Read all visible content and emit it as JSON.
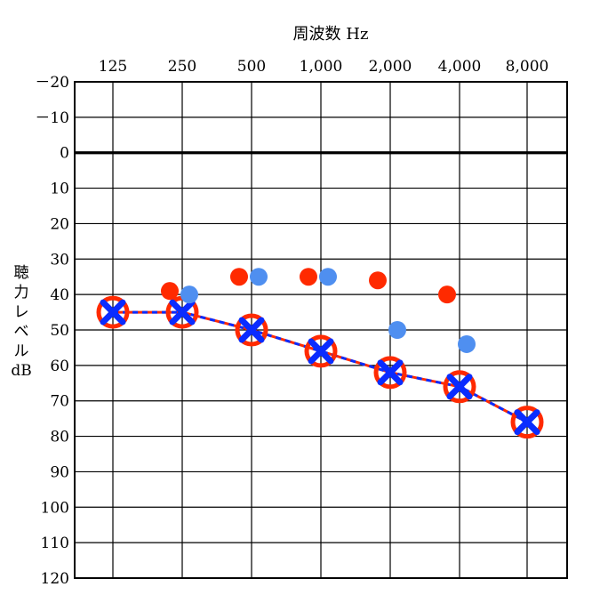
{
  "chart_data": {
    "type": "scatter",
    "title": "",
    "xlabel": "周波数 Hz",
    "ylabel_lines": [
      "聴",
      "力",
      "レ",
      "ベ",
      "ル",
      "dB"
    ],
    "x_categories": [
      "125",
      "250",
      "500",
      "1,000",
      "2,000",
      "4,000",
      "8,000"
    ],
    "y_ticks": [
      "－20",
      "－10",
      "0",
      "10",
      "20",
      "30",
      "40",
      "50",
      "60",
      "70",
      "80",
      "90",
      "100",
      "110",
      "120"
    ],
    "y_tick_values": [
      -20,
      -10,
      0,
      10,
      20,
      30,
      40,
      50,
      60,
      70,
      80,
      90,
      100,
      110,
      120
    ],
    "ylim": [
      -20,
      120
    ],
    "y_inverted": true,
    "grid": true,
    "colors": {
      "red": "#ff2a00",
      "blue": "#0a2cff",
      "light_blue": "#4f8ff0",
      "grid": "#000000"
    },
    "series": [
      {
        "marker": "circle-red-air",
        "x": [
          "125",
          "250",
          "500",
          "1,000",
          "2,000",
          "4,000",
          "8,000"
        ],
        "values": [
          45,
          45,
          50,
          56,
          62,
          66,
          76
        ]
      },
      {
        "marker": "cross-blue-air",
        "x": [
          "125",
          "250",
          "500",
          "1,000",
          "2,000",
          "4,000",
          "8,000"
        ],
        "values": [
          45,
          45,
          50,
          56,
          62,
          66,
          76
        ]
      },
      {
        "marker": "dot-red-bone",
        "x": [
          "250",
          "500",
          "1,000",
          "2,000",
          "4,000"
        ],
        "values": [
          39,
          35,
          35,
          36,
          40
        ]
      },
      {
        "marker": "dot-lightblue-bone",
        "x": [
          "250",
          "500",
          "1,000",
          "2,000",
          "4,000"
        ],
        "values": [
          40,
          35,
          35,
          50,
          54
        ]
      }
    ]
  }
}
